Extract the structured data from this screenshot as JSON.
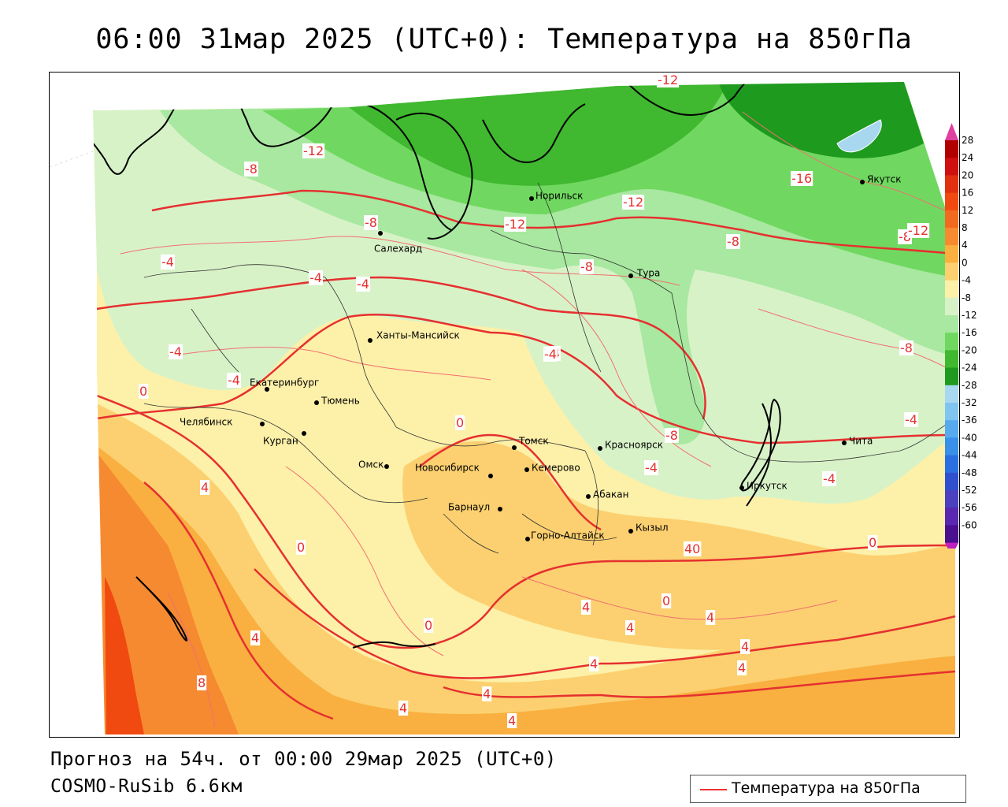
{
  "title": "06:00 31мар 2025 (UTC+0): Температура на 850гПа",
  "footer": {
    "forecast": "Прогноз на 54ч. от 00:00 29мар 2025 (UTC+0)",
    "model": "COSMO-RuSib 6.6км"
  },
  "legend": {
    "label": "Температура на 850гПа",
    "line_color": "#e53030"
  },
  "colorbar": {
    "ticks": [
      "28",
      "24",
      "20",
      "16",
      "12",
      "8",
      "4",
      "0",
      "-4",
      "-8",
      "-12",
      "-16",
      "-20",
      "-24",
      "-28",
      "-32",
      "-36",
      "-40",
      "-44",
      "-48",
      "-52",
      "-56",
      "-60"
    ],
    "colors": [
      "#b10000",
      "#d01010",
      "#e03010",
      "#f04a10",
      "#f26a20",
      "#f68a30",
      "#f9b040",
      "#fcd070",
      "#fdf0a8",
      "#d8f2c8",
      "#a8e8a0",
      "#70d860",
      "#40b830",
      "#1e9a1e",
      "#a8d8f0",
      "#80c4f0",
      "#58aaee",
      "#3890e8",
      "#2a70e0",
      "#3050d0",
      "#4a40c0",
      "#5a28b0",
      "#4a1090"
    ],
    "top_arrow_color": "#e040a0",
    "bottom_arrow_color": "#c020c0"
  },
  "cities": [
    {
      "name": "Норильск"
    },
    {
      "name": "Якутск"
    },
    {
      "name": "Салехард"
    },
    {
      "name": "Тура"
    },
    {
      "name": "Ханты-Мансийск"
    },
    {
      "name": "Екатеринбург"
    },
    {
      "name": "Тюмень"
    },
    {
      "name": "Челябинск"
    },
    {
      "name": "Курган"
    },
    {
      "name": "Омск"
    },
    {
      "name": "Новосибирск"
    },
    {
      "name": "Томск"
    },
    {
      "name": "Кемерово"
    },
    {
      "name": "Красноярск"
    },
    {
      "name": "Абакан"
    },
    {
      "name": "Барнаул"
    },
    {
      "name": "Горно-Алтайск"
    },
    {
      "name": "Кызыл"
    },
    {
      "name": "Иркутск"
    },
    {
      "name": "Чита"
    }
  ],
  "isotherm_labels": [
    "-12",
    "-12",
    "-16",
    "-8",
    "-12",
    "-12",
    "-8",
    "-8",
    "-4",
    "-4",
    "-4",
    "-4",
    "-8",
    "-8",
    "-4",
    "0",
    "-8",
    "-4",
    "-4",
    "4",
    "0",
    "0",
    "4",
    "8",
    "0",
    "4",
    "4",
    "4",
    "4",
    "4",
    "4",
    "4",
    "4",
    "0",
    "40",
    "4",
    "-4",
    "-12",
    "-8",
    "-4",
    "-4",
    "0"
  ]
}
